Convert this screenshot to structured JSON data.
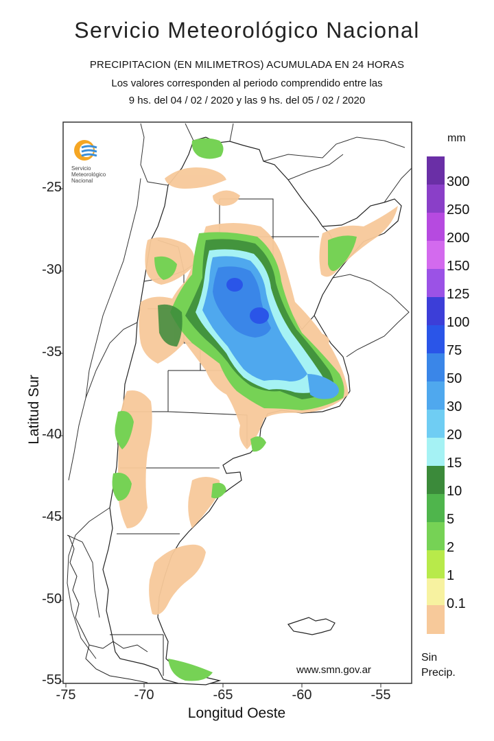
{
  "header": {
    "title": "Servicio  Meteorológico  Nacional",
    "subtitle": "PRECIPITACION (EN MILIMETROS) ACUMULADA EN 24 HORAS",
    "period_line1": "Los valores corresponden al periodo comprendido entre las",
    "period_line2": "9 hs. del 04 / 02 / 2020  y las 9 hs. del 05 / 02 / 2020"
  },
  "logo": {
    "line1": "Servicio",
    "line2": "Meteorológico",
    "line3": "Nacional",
    "icon": "smn-logo-icon"
  },
  "website": "www.smn.gov.ar",
  "axes": {
    "ylabel": "Latitud Sur",
    "xlabel": "Longitud Oeste",
    "yticks": [
      "-25",
      "-30",
      "-35",
      "-40",
      "-45",
      "-50",
      "-55"
    ],
    "xticks": [
      "-75",
      "-70",
      "-65",
      "-60",
      "-55"
    ]
  },
  "legend": {
    "unit": "mm",
    "no_precip_line1": "Sin",
    "no_precip_line2": "Precip.",
    "items": [
      {
        "label": "300",
        "color": "#6a2fa6"
      },
      {
        "label": "250",
        "color": "#8a3fc8"
      },
      {
        "label": "200",
        "color": "#b64ae0"
      },
      {
        "label": "150",
        "color": "#d36aee"
      },
      {
        "label": "125",
        "color": "#9b52e6"
      },
      {
        "label": "100",
        "color": "#3c3ed8"
      },
      {
        "label": "75",
        "color": "#2a55e8"
      },
      {
        "label": "50",
        "color": "#3a86e8"
      },
      {
        "label": "30",
        "color": "#4fa8ee"
      },
      {
        "label": "20",
        "color": "#6fcdf3"
      },
      {
        "label": "15",
        "color": "#a5f2f4"
      },
      {
        "label": "10",
        "color": "#3b8a3a"
      },
      {
        "label": "5",
        "color": "#4fb54c"
      },
      {
        "label": "2",
        "color": "#76d255"
      },
      {
        "label": "1",
        "color": "#b8ea4a"
      },
      {
        "label": "0.1",
        "color": "#f7f2a0"
      }
    ],
    "no_precip_color": "#f7c99a"
  }
}
